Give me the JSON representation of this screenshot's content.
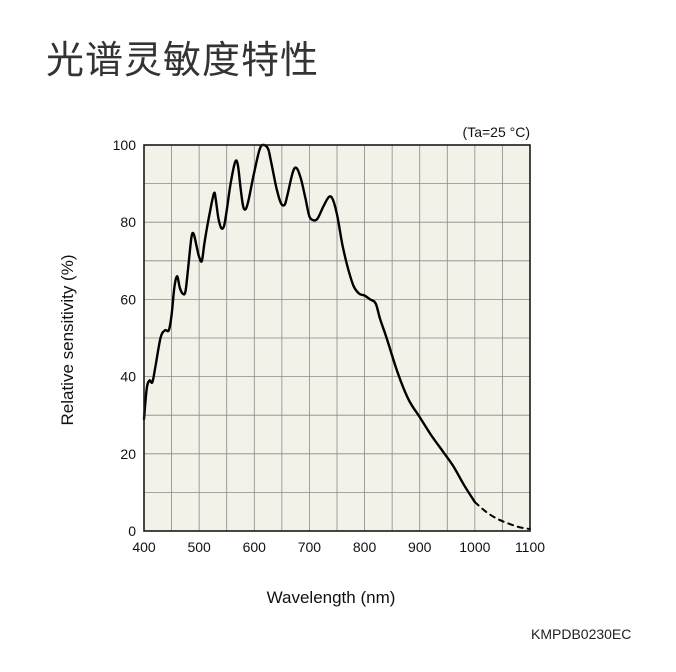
{
  "title": "光谱灵敏度特性",
  "chart_data": {
    "type": "line",
    "condition": "(Ta=25 °C)",
    "xlabel": "Wavelength (nm)",
    "ylabel": "Relative sensitivity (%)",
    "xlim": [
      400,
      1100
    ],
    "ylim": [
      0,
      100
    ],
    "x_ticks": [
      400,
      500,
      600,
      700,
      800,
      900,
      1000,
      1100
    ],
    "y_ticks": [
      0,
      20,
      40,
      60,
      80,
      100
    ],
    "grid": true,
    "background": "#f3f1e8",
    "line_color": "#000000",
    "series": [
      {
        "style": "solid",
        "points": [
          [
            400,
            29
          ],
          [
            405,
            37
          ],
          [
            410,
            39
          ],
          [
            415,
            38.5
          ],
          [
            420,
            42
          ],
          [
            430,
            50
          ],
          [
            438,
            52
          ],
          [
            445,
            52
          ],
          [
            450,
            56
          ],
          [
            455,
            63
          ],
          [
            460,
            66
          ],
          [
            465,
            63
          ],
          [
            470,
            61.5
          ],
          [
            475,
            62
          ],
          [
            480,
            68
          ],
          [
            486,
            76
          ],
          [
            490,
            77
          ],
          [
            495,
            74
          ],
          [
            500,
            71
          ],
          [
            505,
            70
          ],
          [
            510,
            75
          ],
          [
            520,
            83
          ],
          [
            527,
            87.5
          ],
          [
            530,
            86
          ],
          [
            535,
            81
          ],
          [
            540,
            78.5
          ],
          [
            545,
            79
          ],
          [
            550,
            83
          ],
          [
            557,
            90
          ],
          [
            565,
            95.5
          ],
          [
            570,
            95
          ],
          [
            575,
            89
          ],
          [
            580,
            84
          ],
          [
            585,
            83.5
          ],
          [
            590,
            86
          ],
          [
            600,
            93
          ],
          [
            610,
            99
          ],
          [
            617,
            100
          ],
          [
            625,
            99
          ],
          [
            630,
            96
          ],
          [
            640,
            89
          ],
          [
            648,
            85
          ],
          [
            655,
            84.5
          ],
          [
            660,
            87
          ],
          [
            670,
            93
          ],
          [
            677,
            94
          ],
          [
            685,
            91
          ],
          [
            693,
            86
          ],
          [
            700,
            81.5
          ],
          [
            708,
            80.5
          ],
          [
            715,
            81
          ],
          [
            725,
            84
          ],
          [
            735,
            86.5
          ],
          [
            742,
            86
          ],
          [
            750,
            82
          ],
          [
            760,
            74
          ],
          [
            770,
            68
          ],
          [
            780,
            63.5
          ],
          [
            790,
            61.5
          ],
          [
            800,
            61
          ],
          [
            810,
            60
          ],
          [
            820,
            59
          ],
          [
            828,
            55
          ],
          [
            840,
            50
          ],
          [
            860,
            41
          ],
          [
            880,
            34
          ],
          [
            900,
            29.5
          ],
          [
            920,
            25
          ],
          [
            940,
            21
          ],
          [
            960,
            17
          ],
          [
            980,
            12
          ],
          [
            1000,
            7.5
          ]
        ]
      },
      {
        "style": "dashed",
        "points": [
          [
            1000,
            7.5
          ],
          [
            1020,
            5
          ],
          [
            1040,
            3.2
          ],
          [
            1060,
            2
          ],
          [
            1080,
            1
          ],
          [
            1100,
            0.5
          ]
        ]
      }
    ]
  },
  "figure_code": "KMPDB0230EC"
}
